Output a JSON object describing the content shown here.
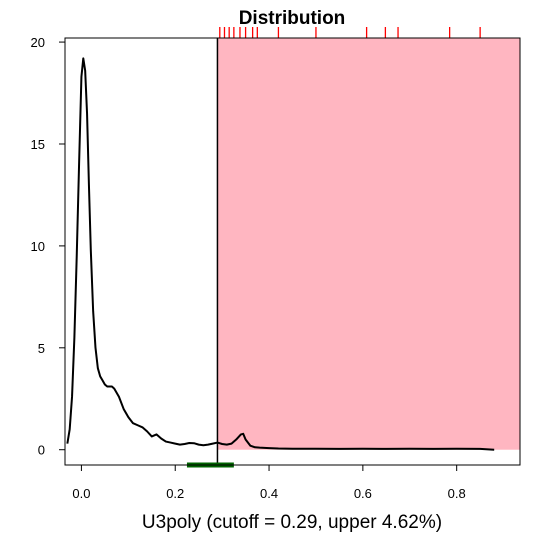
{
  "chart_data": {
    "type": "line",
    "title": "Distribution",
    "xlabel": "U3poly (cutoff = 0.29, upper 4.62%)",
    "ylabel": "",
    "xlim": [
      -0.035,
      0.935
    ],
    "ylim": [
      -0.75,
      20.2
    ],
    "x_ticks": [
      0.0,
      0.2,
      0.4,
      0.6,
      0.8
    ],
    "x_tick_labels": [
      "0.0",
      "0.2",
      "0.4",
      "0.6",
      "0.8"
    ],
    "y_ticks": [
      0,
      5,
      10,
      15,
      20
    ],
    "y_tick_labels": [
      "0",
      "5",
      "10",
      "15",
      "20"
    ],
    "cutoff": 0.29,
    "upper_percent": 4.62,
    "shaded_region": {
      "from": 0.29,
      "to": 0.935,
      "color": "#ffb6c1"
    },
    "interval_bar": {
      "from": 0.225,
      "to": 0.325,
      "color": "#006400"
    },
    "rug_color": "#ff0000",
    "rug": [
      0.295,
      0.305,
      0.315,
      0.325,
      0.338,
      0.35,
      0.365,
      0.375,
      0.42,
      0.5,
      0.608,
      0.648,
      0.675,
      0.785,
      0.85
    ],
    "series": [
      {
        "color": "#000000",
        "x": [
          -0.03,
          -0.025,
          -0.02,
          -0.015,
          -0.01,
          -0.005,
          0.0,
          0.004,
          0.008,
          0.012,
          0.016,
          0.02,
          0.025,
          0.03,
          0.035,
          0.04,
          0.045,
          0.05,
          0.055,
          0.06,
          0.065,
          0.07,
          0.08,
          0.09,
          0.1,
          0.11,
          0.12,
          0.13,
          0.14,
          0.15,
          0.16,
          0.17,
          0.18,
          0.19,
          0.2,
          0.21,
          0.22,
          0.23,
          0.24,
          0.25,
          0.26,
          0.27,
          0.28,
          0.29,
          0.3,
          0.31,
          0.32,
          0.33,
          0.34,
          0.345,
          0.35,
          0.36,
          0.37,
          0.38,
          0.4,
          0.42,
          0.45,
          0.5,
          0.55,
          0.6,
          0.65,
          0.7,
          0.75,
          0.8,
          0.85,
          0.88
        ],
        "y": [
          0.3,
          1.0,
          2.6,
          5.5,
          9.5,
          14.0,
          18.3,
          19.2,
          18.6,
          16.5,
          13.0,
          9.8,
          6.8,
          5.0,
          4.0,
          3.6,
          3.4,
          3.2,
          3.1,
          3.1,
          3.1,
          3.0,
          2.6,
          2.0,
          1.6,
          1.3,
          1.2,
          1.1,
          0.9,
          0.65,
          0.75,
          0.55,
          0.4,
          0.35,
          0.3,
          0.25,
          0.28,
          0.33,
          0.32,
          0.25,
          0.22,
          0.25,
          0.3,
          0.35,
          0.28,
          0.25,
          0.3,
          0.5,
          0.75,
          0.78,
          0.5,
          0.2,
          0.12,
          0.1,
          0.08,
          0.06,
          0.05,
          0.05,
          0.04,
          0.05,
          0.04,
          0.05,
          0.04,
          0.05,
          0.04,
          0.0
        ]
      }
    ],
    "grid": false,
    "legend": "none"
  }
}
